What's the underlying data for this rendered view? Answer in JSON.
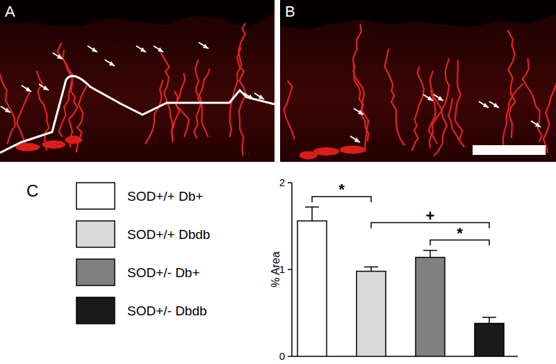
{
  "figure": {
    "panel_labels": [
      "A",
      "B",
      "C"
    ]
  },
  "chart_data": {
    "type": "bar",
    "y_label": "% Area",
    "categories": [
      "SOD+/+ Db+",
      "SOD+/+ Dbdb",
      "SOD+/- Db+",
      "SOD+/- Dbdb"
    ],
    "values": [
      1.56,
      0.98,
      1.14,
      0.38
    ],
    "errors": [
      0.16,
      0.05,
      0.08,
      0.07
    ],
    "colors": [
      "#ffffff",
      "#d9d9d9",
      "#808080",
      "#1a1a1a"
    ],
    "ylim": [
      0,
      2
    ],
    "yticks": [
      0,
      1,
      2
    ],
    "tick_labels": "y",
    "legend": "left",
    "annotations": [
      {
        "text": "*",
        "from": 0,
        "to": 1
      },
      {
        "text": "*",
        "from": 2,
        "to": 3
      },
      {
        "text": "+",
        "from": 1,
        "to": 3
      }
    ]
  }
}
